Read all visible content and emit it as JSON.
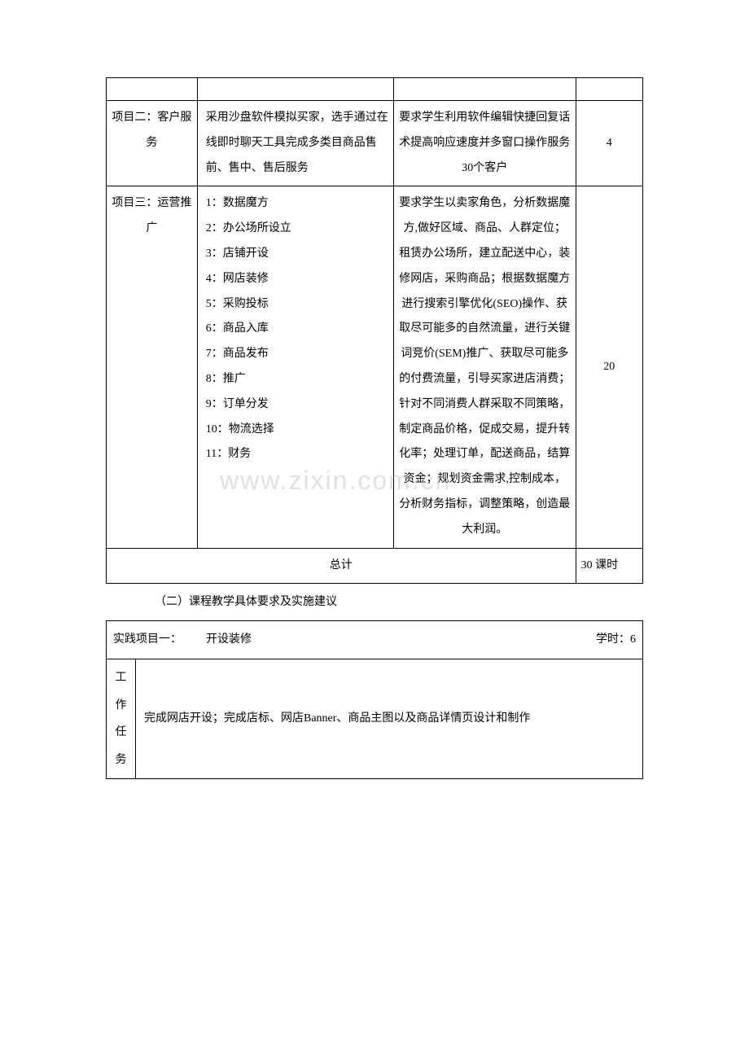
{
  "table1": {
    "rows": [
      {
        "project": "",
        "content": "",
        "requirement": "",
        "hours": ""
      },
      {
        "project": "项目二：客户服务",
        "content": "采用沙盘软件模拟买家，选手通过在线即时聊天工具完成多类目商品售前、售中、售后服务",
        "requirement": "要求学生利用软件编辑快捷回复话术提高响应速度并多窗口操作服务30个客户",
        "hours": "4"
      },
      {
        "project": "项目三：运营推广",
        "content": "1：数据魔方\n2：办公场所设立\n3：店铺开设\n4：网店装修\n5：采购投标\n6：商品入库\n7：商品发布\n8：推广\n9：订单分发\n10：物流选择\n11：财务",
        "requirement": "要求学生以卖家角色，分析数据魔方,做好区域、商品、人群定位；租赁办公场所，建立配送中心，装修网店，采购商品；根据数据魔方进行搜索引擎优化(SEO)操作、获取尽可能多的自然流量，进行关键词竞价(SEM)推广、获取尽可能多的付费流量，引导买家进店消费；针对不同消费人群采取不同策略，制定商品价格，促成交易，提升转化率；处理订单，配送商品，结算资金；规划资金需求,控制成本，分析财务指标，调整策略，创造最大利润。",
        "hours": "20"
      }
    ],
    "total_label": "总计",
    "total_value": "30 课时"
  },
  "section_title": "（二）课程教学具体要求及实施建议",
  "table2": {
    "header_left": "实践项目一：",
    "header_mid": "开设装修",
    "header_right": "学时：6",
    "row1_label": "工作任务",
    "row1_content": "完成网店开设；完成店标、网店Banner、商品主图以及商品详情页设计和制作"
  },
  "watermark": "www.zixin.com.cn"
}
